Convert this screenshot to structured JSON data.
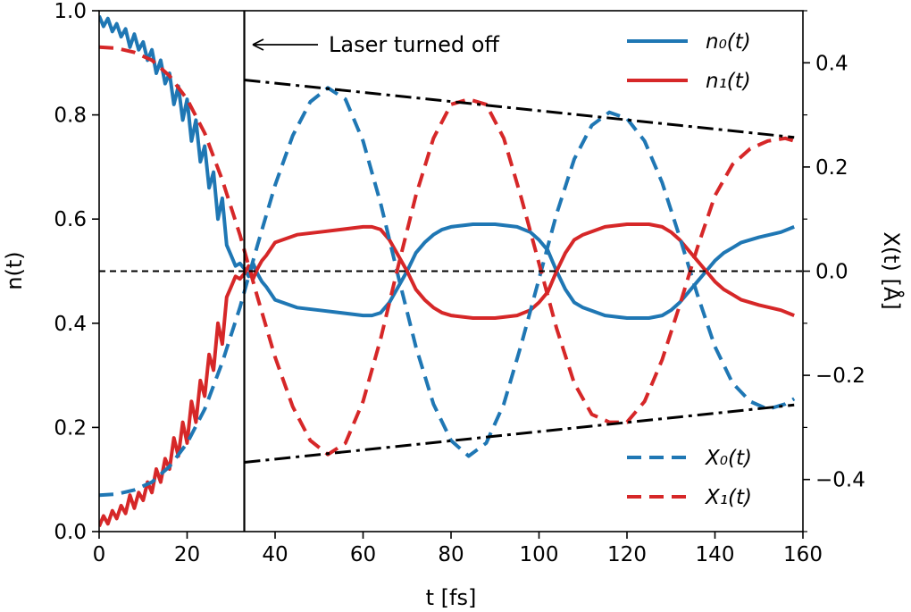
{
  "chart_data": {
    "type": "line",
    "xlabel": "t [fs]",
    "ylabel_left": "n(t)",
    "ylabel_right": "X(t) [Å]",
    "xlim": [
      0,
      160
    ],
    "ylim_left": [
      0.0,
      1.0
    ],
    "ylim_right": [
      -0.5,
      0.5
    ],
    "x_ticks": [
      "0",
      "20",
      "40",
      "60",
      "80",
      "100",
      "120",
      "140",
      "160"
    ],
    "y_left_ticks": [
      "0.0",
      "0.2",
      "0.4",
      "0.6",
      "0.8",
      "1.0"
    ],
    "y_right_ticks": [
      "−0.4",
      "−0.2",
      "0.0",
      "0.2",
      "0.4"
    ],
    "grid": false,
    "annotation": {
      "text": "Laser turned off",
      "x": 33
    },
    "reference_lines": {
      "horizontal_n": 0.5,
      "vertical_t": 33
    },
    "legend_upper": {
      "placement": "top-right",
      "entries": [
        {
          "label": "n₀(t)",
          "color": "#1f77b4",
          "style": "solid"
        },
        {
          "label": "n₁(t)",
          "color": "#d62728",
          "style": "solid"
        }
      ]
    },
    "legend_lower": {
      "placement": "bottom-right",
      "entries": [
        {
          "label": "X₀(t)",
          "color": "#1f77b4",
          "style": "dashed"
        },
        {
          "label": "X₁(t)",
          "color": "#d62728",
          "style": "dashed"
        }
      ]
    },
    "series": [
      {
        "name": "n₀(t)",
        "axis": "left",
        "color": "#1f77b4",
        "style": "solid",
        "x": [
          0,
          1,
          2,
          3,
          4,
          5,
          6,
          7,
          8,
          9,
          10,
          11,
          12,
          13,
          14,
          15,
          16,
          17,
          18,
          19,
          20,
          21,
          22,
          23,
          24,
          25,
          26,
          27,
          28,
          29,
          30,
          31,
          32,
          33,
          34,
          35,
          36,
          37,
          38,
          40,
          45,
          50,
          55,
          60,
          62,
          64,
          66,
          68,
          70,
          72,
          74,
          76,
          78,
          80,
          85,
          90,
          95,
          98,
          100,
          102,
          104,
          106,
          108,
          110,
          115,
          120,
          125,
          128,
          130,
          132,
          134,
          136,
          138,
          140,
          142,
          144,
          146,
          150,
          155,
          158
        ],
        "y": [
          0.99,
          0.97,
          0.985,
          0.96,
          0.975,
          0.95,
          0.965,
          0.93,
          0.955,
          0.925,
          0.94,
          0.905,
          0.925,
          0.88,
          0.905,
          0.86,
          0.88,
          0.82,
          0.855,
          0.79,
          0.83,
          0.75,
          0.79,
          0.71,
          0.74,
          0.66,
          0.69,
          0.6,
          0.64,
          0.55,
          0.53,
          0.51,
          0.515,
          0.505,
          0.49,
          0.515,
          0.495,
          0.48,
          0.47,
          0.445,
          0.43,
          0.425,
          0.42,
          0.415,
          0.415,
          0.42,
          0.44,
          0.47,
          0.5,
          0.535,
          0.555,
          0.57,
          0.58,
          0.585,
          0.59,
          0.59,
          0.585,
          0.575,
          0.56,
          0.54,
          0.5,
          0.465,
          0.44,
          0.43,
          0.415,
          0.41,
          0.41,
          0.415,
          0.425,
          0.44,
          0.46,
          0.48,
          0.5,
          0.52,
          0.535,
          0.545,
          0.555,
          0.565,
          0.575,
          0.585
        ]
      },
      {
        "name": "n₁(t)",
        "axis": "left",
        "color": "#d62728",
        "style": "solid",
        "x": [
          0,
          1,
          2,
          3,
          4,
          5,
          6,
          7,
          8,
          9,
          10,
          11,
          12,
          13,
          14,
          15,
          16,
          17,
          18,
          19,
          20,
          21,
          22,
          23,
          24,
          25,
          26,
          27,
          28,
          29,
          30,
          31,
          32,
          33,
          34,
          35,
          36,
          37,
          38,
          40,
          45,
          50,
          55,
          60,
          62,
          64,
          66,
          68,
          70,
          72,
          74,
          76,
          78,
          80,
          85,
          90,
          95,
          98,
          100,
          102,
          104,
          106,
          108,
          110,
          115,
          120,
          125,
          128,
          130,
          132,
          134,
          136,
          138,
          140,
          142,
          144,
          146,
          150,
          155,
          158
        ],
        "y": [
          0.01,
          0.03,
          0.015,
          0.04,
          0.025,
          0.05,
          0.035,
          0.07,
          0.045,
          0.075,
          0.06,
          0.095,
          0.075,
          0.12,
          0.095,
          0.14,
          0.12,
          0.18,
          0.145,
          0.21,
          0.17,
          0.25,
          0.21,
          0.29,
          0.26,
          0.34,
          0.31,
          0.4,
          0.36,
          0.45,
          0.47,
          0.49,
          0.485,
          0.495,
          0.51,
          0.485,
          0.505,
          0.52,
          0.53,
          0.555,
          0.57,
          0.575,
          0.58,
          0.585,
          0.585,
          0.58,
          0.56,
          0.53,
          0.5,
          0.465,
          0.445,
          0.43,
          0.42,
          0.415,
          0.41,
          0.41,
          0.415,
          0.425,
          0.44,
          0.46,
          0.5,
          0.535,
          0.56,
          0.57,
          0.585,
          0.59,
          0.59,
          0.585,
          0.575,
          0.56,
          0.54,
          0.52,
          0.5,
          0.48,
          0.465,
          0.455,
          0.445,
          0.435,
          0.425,
          0.415
        ]
      },
      {
        "name": "X₀(t)",
        "axis": "right",
        "color": "#1f77b4",
        "style": "dashed",
        "x": [
          0,
          4,
          8,
          12,
          16,
          20,
          24,
          28,
          32,
          36,
          40,
          44,
          48,
          52,
          56,
          60,
          64,
          68,
          72,
          76,
          80,
          84,
          88,
          92,
          96,
          100,
          104,
          108,
          112,
          116,
          120,
          124,
          128,
          132,
          136,
          140,
          144,
          148,
          152,
          156,
          158
        ],
        "y": [
          -0.43,
          -0.428,
          -0.42,
          -0.405,
          -0.375,
          -0.33,
          -0.265,
          -0.175,
          -0.07,
          0.05,
          0.165,
          0.26,
          0.325,
          0.352,
          0.33,
          0.25,
          0.13,
          -0.01,
          -0.145,
          -0.255,
          -0.325,
          -0.355,
          -0.33,
          -0.255,
          -0.14,
          -0.015,
          0.11,
          0.215,
          0.28,
          0.305,
          0.293,
          0.25,
          0.17,
          0.065,
          -0.045,
          -0.145,
          -0.215,
          -0.25,
          -0.265,
          -0.255,
          -0.245
        ]
      },
      {
        "name": "X₁(t)",
        "axis": "right",
        "color": "#d62728",
        "style": "dashed",
        "x": [
          0,
          4,
          8,
          12,
          16,
          20,
          24,
          28,
          32,
          36,
          40,
          44,
          48,
          52,
          56,
          60,
          64,
          68,
          72,
          76,
          80,
          84,
          88,
          92,
          96,
          100,
          104,
          108,
          112,
          116,
          120,
          124,
          128,
          132,
          136,
          140,
          144,
          148,
          152,
          156,
          158
        ],
        "y": [
          0.43,
          0.428,
          0.42,
          0.405,
          0.375,
          0.33,
          0.265,
          0.175,
          0.07,
          -0.05,
          -0.165,
          -0.26,
          -0.325,
          -0.352,
          -0.33,
          -0.25,
          -0.13,
          0.01,
          0.145,
          0.255,
          0.32,
          0.33,
          0.32,
          0.255,
          0.14,
          0.015,
          -0.11,
          -0.215,
          -0.275,
          -0.29,
          -0.29,
          -0.25,
          -0.17,
          -0.065,
          0.045,
          0.145,
          0.205,
          0.235,
          0.25,
          0.255,
          0.25
        ]
      },
      {
        "name": "",
        "axis": "right",
        "color": "#000000",
        "style": "dashdot",
        "x": [
          33,
          158
        ],
        "y": [
          0.367,
          0.257
        ]
      },
      {
        "name": "",
        "axis": "right",
        "color": "#000000",
        "style": "dashdot",
        "x": [
          33,
          158
        ],
        "y": [
          -0.367,
          -0.257
        ]
      }
    ]
  }
}
